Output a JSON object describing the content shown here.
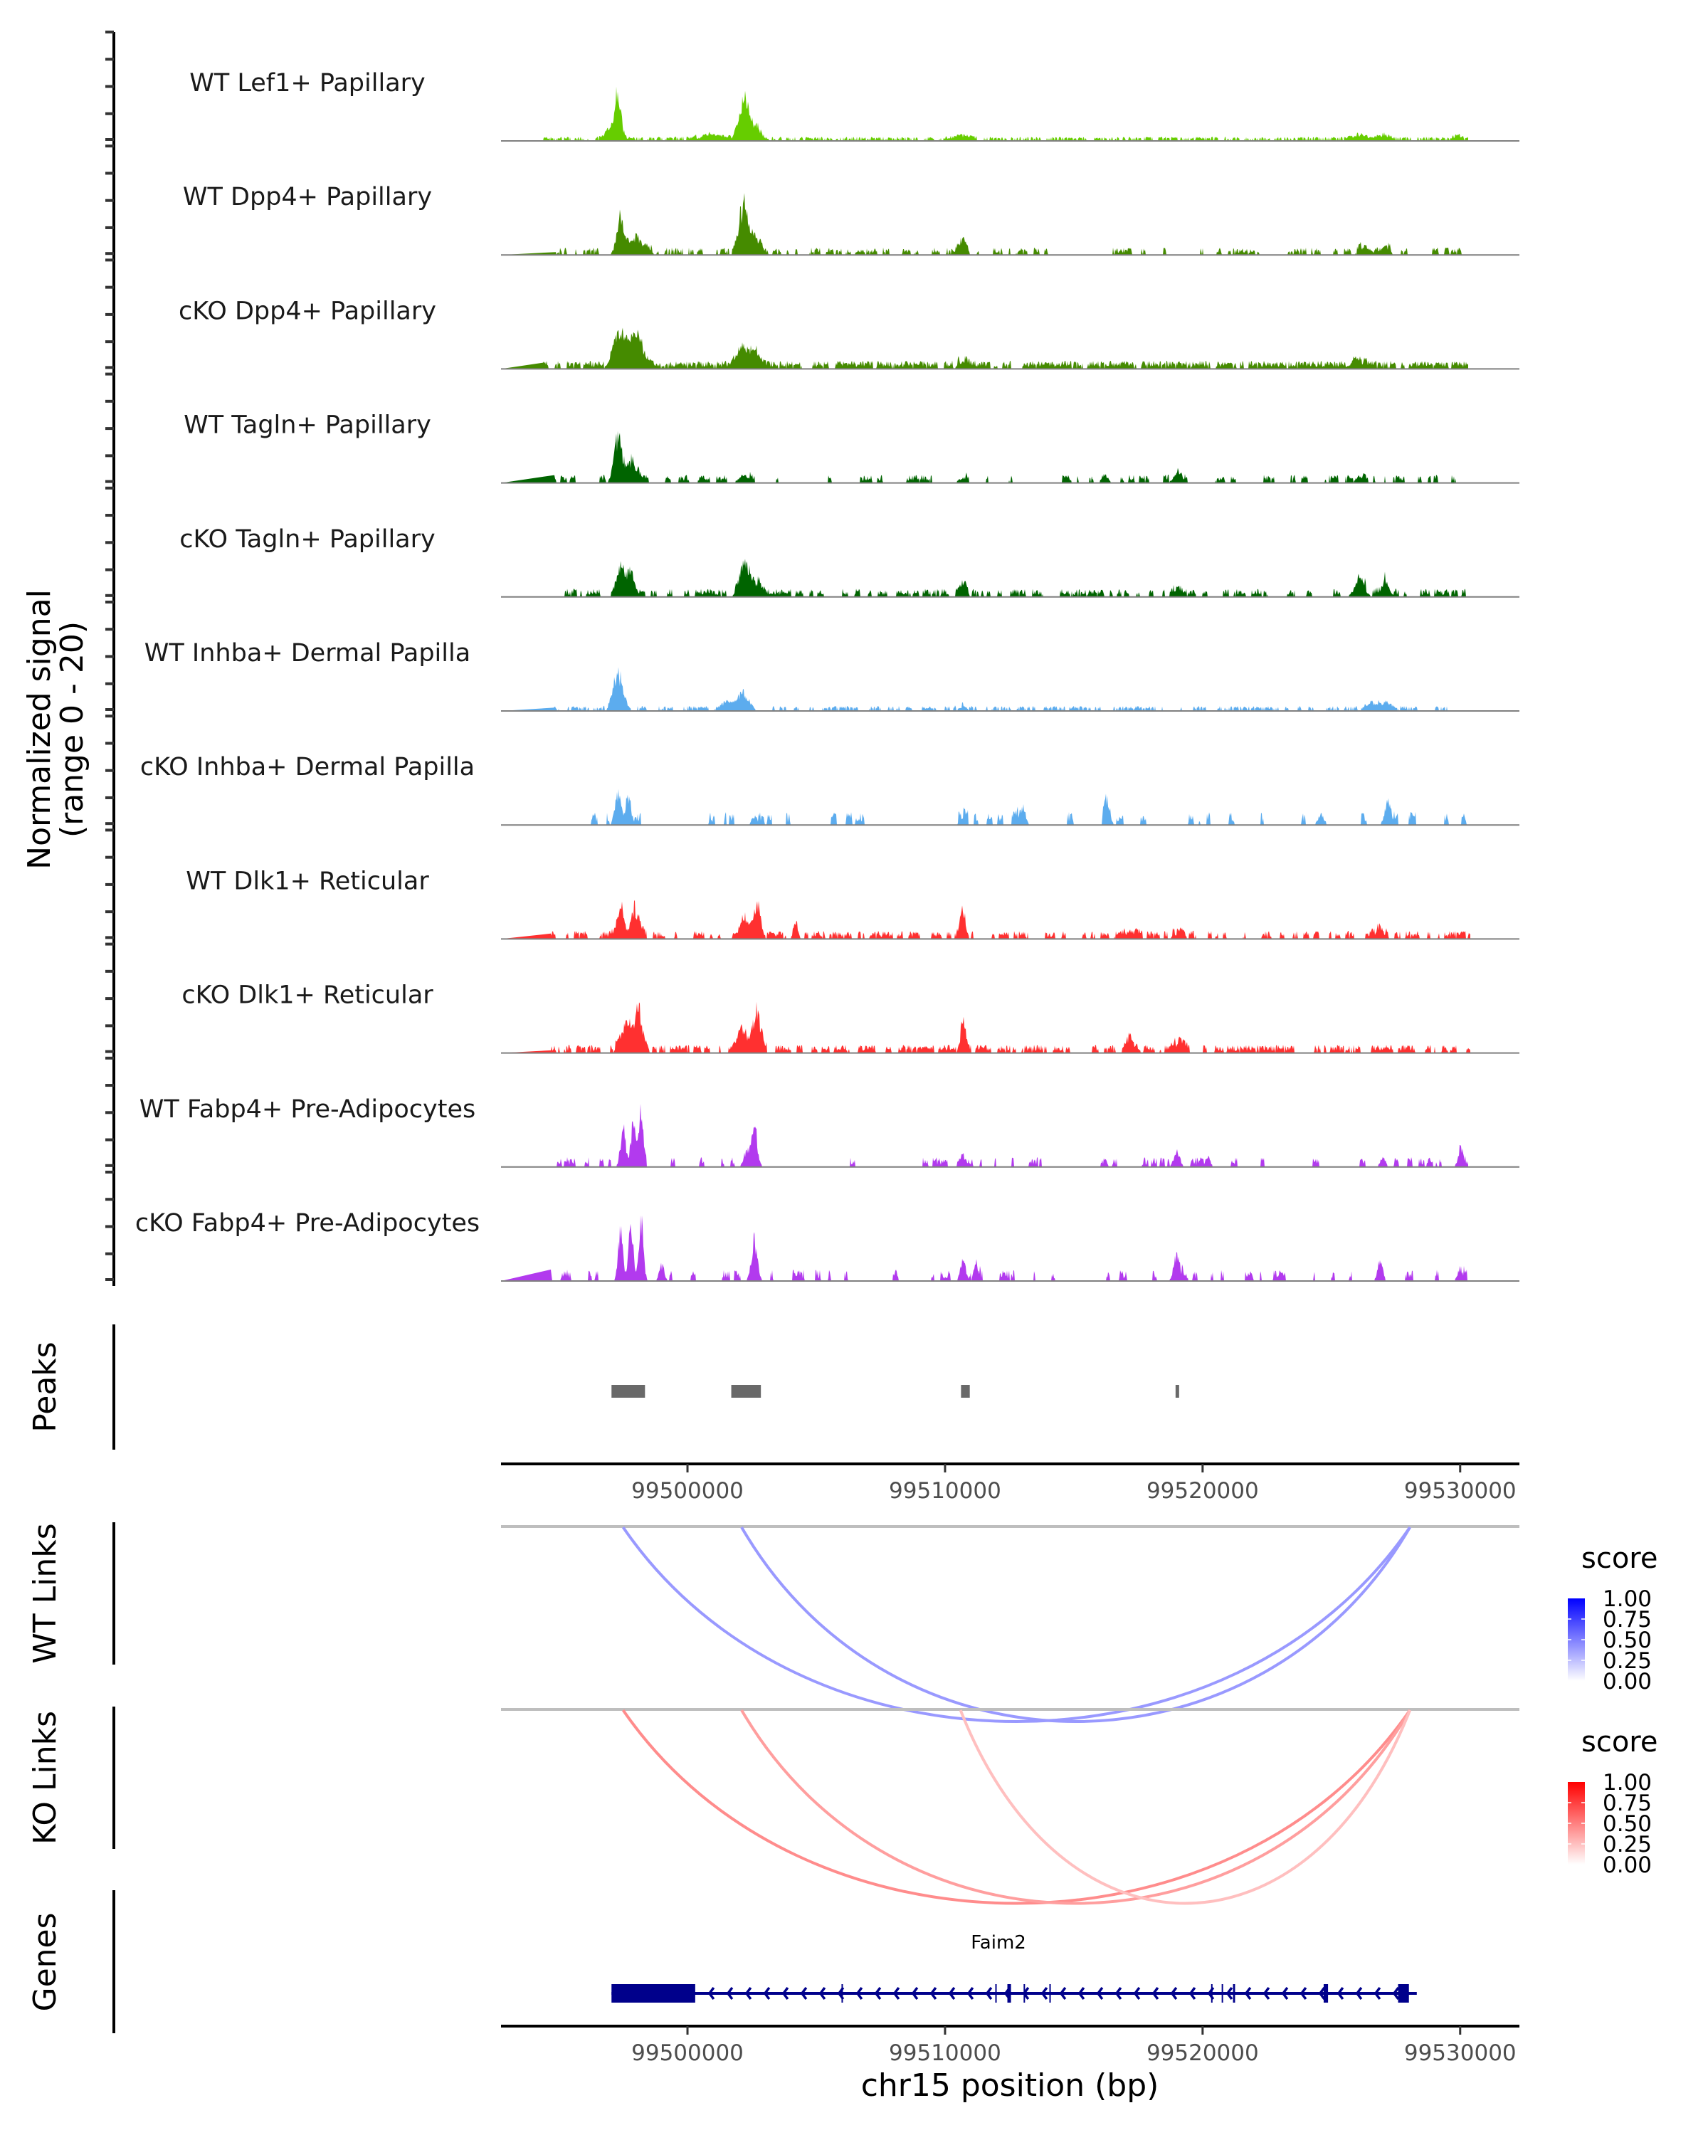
{
  "chart_data": {
    "type": "area",
    "title": "",
    "region": {
      "chrom": "chr15",
      "start": 99492760,
      "end": 99532300
    },
    "xlabel": "chr15 position (bp)",
    "x_ticks": [
      99500000,
      99510000,
      99520000,
      99530000
    ],
    "x_tick_labels": [
      "99500000",
      "99510000",
      "99520000",
      "99530000"
    ],
    "coverage": {
      "ylabel_line1": "Normalized signal",
      "ylabel_line2": "(range 0 - 20)",
      "ylim": [
        0,
        20
      ],
      "tracks": [
        {
          "name": "WT Lef1+ Papillary",
          "color": "#66CD00",
          "noise": 0.5,
          "density": 0.9,
          "seed": 11,
          "span": [
            99494400,
            99530300
          ],
          "peaks": [
            [
              99497300,
              10.0,
              120
            ],
            [
              99497000,
              2.2,
              200
            ],
            [
              99502200,
              9.0,
              200
            ],
            [
              99502700,
              2.6,
              150
            ],
            [
              99500900,
              1.0,
              500
            ],
            [
              99510700,
              0.8,
              300
            ],
            [
              99526100,
              1.0,
              250
            ],
            [
              99527000,
              0.9,
              200
            ],
            [
              99529900,
              0.9,
              150
            ]
          ]
        },
        {
          "name": "WT Dpp4+ Papillary",
          "color": "#458B00",
          "noise": 0.9,
          "density": 0.45,
          "seed": 23,
          "span": [
            99494900,
            99530200
          ],
          "peaks": [
            [
              99497400,
              7.4,
              150
            ],
            [
              99497900,
              4.2,
              200
            ],
            [
              99498400,
              2.2,
              150
            ],
            [
              99502200,
              11.5,
              180
            ],
            [
              99502700,
              3.5,
              150
            ],
            [
              99510700,
              2.7,
              150
            ],
            [
              99526300,
              2.0,
              200
            ],
            [
              99527100,
              2.0,
              150
            ]
          ]
        },
        {
          "name": "cKO Dpp4+ Papillary",
          "color": "#458B00",
          "noise": 1.0,
          "density": 0.85,
          "seed": 37,
          "span": [
            99494400,
            99530300
          ],
          "peaks": [
            [
              99497300,
              4.5,
              200
            ],
            [
              99498000,
              5.6,
              250
            ],
            [
              99497600,
              3.0,
              400
            ],
            [
              99502100,
              3.8,
              200
            ],
            [
              99502600,
              3.5,
              200
            ],
            [
              99510700,
              1.5,
              200
            ],
            [
              99526000,
              1.5,
              300
            ]
          ]
        },
        {
          "name": "WT Tagln+ Papillary",
          "color": "#006400",
          "noise": 1.0,
          "density": 0.35,
          "seed": 41,
          "span": [
            99494800,
            99530300
          ],
          "peaks": [
            [
              99497300,
              8.5,
              160
            ],
            [
              99497800,
              4.0,
              250
            ],
            [
              99502200,
              1.8,
              200
            ],
            [
              99510700,
              1.2,
              150
            ],
            [
              99516200,
              2.0,
              120
            ],
            [
              99519000,
              2.0,
              150
            ],
            [
              99526100,
              1.6,
              150
            ]
          ]
        },
        {
          "name": "cKO Tagln+ Papillary",
          "color": "#006400",
          "noise": 1.0,
          "density": 0.45,
          "seed": 53,
          "span": [
            99494800,
            99530300
          ],
          "peaks": [
            [
              99497400,
              5.5,
              150
            ],
            [
              99497800,
              6.0,
              160
            ],
            [
              99502200,
              8.3,
              180
            ],
            [
              99502700,
              3.0,
              160
            ],
            [
              99510700,
              2.1,
              150
            ],
            [
              99519000,
              1.5,
              150
            ],
            [
              99526100,
              3.5,
              200
            ],
            [
              99527100,
              3.6,
              150
            ]
          ]
        },
        {
          "name": "WT Inhba+ Dermal Papilla",
          "color": "#5CACEE",
          "noise": 0.6,
          "density": 0.55,
          "seed": 67,
          "span": [
            99494800,
            99529500
          ],
          "peaks": [
            [
              99497300,
              7.8,
              180
            ],
            [
              99502200,
              3.5,
              220
            ],
            [
              99501600,
              1.8,
              200
            ],
            [
              99510700,
              1.0,
              150
            ],
            [
              99526700,
              1.8,
              250
            ],
            [
              99527300,
              1.4,
              200
            ]
          ]
        },
        {
          "name": "cKO Inhba+ Dermal Papilla",
          "color": "#5CACEE",
          "noise": 1.6,
          "density": 0.18,
          "seed": 79,
          "span": [
            99495000,
            99530400
          ],
          "peaks": [
            [
              99497300,
              7.0,
              120
            ],
            [
              99497700,
              5.0,
              120
            ],
            [
              99502600,
              2.1,
              100
            ],
            [
              99510700,
              1.6,
              120
            ],
            [
              99513000,
              4.2,
              120
            ],
            [
              99516300,
              6.0,
              100
            ],
            [
              99524600,
              2.3,
              120
            ],
            [
              99527200,
              5.6,
              120
            ]
          ]
        },
        {
          "name": "WT Dlk1+ Reticular",
          "color": "#FF3030",
          "noise": 1.0,
          "density": 0.55,
          "seed": 83,
          "span": [
            99494700,
            99530400
          ],
          "peaks": [
            [
              99497400,
              6.3,
              150
            ],
            [
              99498000,
              6.5,
              160
            ],
            [
              99502200,
              5.0,
              180
            ],
            [
              99502700,
              6.8,
              150
            ],
            [
              99510700,
              6.8,
              100
            ],
            [
              99504200,
              2.5,
              100
            ],
            [
              99517200,
              1.8,
              200
            ],
            [
              99519100,
              1.4,
              200
            ],
            [
              99526900,
              1.8,
              200
            ]
          ]
        },
        {
          "name": "cKO Dlk1+ Reticular",
          "color": "#FF3030",
          "noise": 1.0,
          "density": 0.7,
          "seed": 97,
          "span": [
            99494700,
            99530400
          ],
          "peaks": [
            [
              99497600,
              6.3,
              200
            ],
            [
              99498100,
              9.5,
              150
            ],
            [
              99502100,
              5.6,
              150
            ],
            [
              99502700,
              9.0,
              160
            ],
            [
              99510700,
              6.1,
              110
            ],
            [
              99517200,
              2.9,
              150
            ],
            [
              99519100,
              2.4,
              200
            ]
          ]
        },
        {
          "name": "WT Fabp4+ Pre-Adipocytes",
          "color": "#B23AEE",
          "noise": 1.2,
          "density": 0.2,
          "seed": 101,
          "span": [
            99494700,
            99530300
          ],
          "peaks": [
            [
              99497500,
              9.0,
              100
            ],
            [
              99497900,
              10.0,
              100
            ],
            [
              99498200,
              10.5,
              90
            ],
            [
              99502600,
              7.5,
              120
            ],
            [
              99502300,
              3.5,
              120
            ],
            [
              99510700,
              1.5,
              100
            ],
            [
              99519000,
              3.5,
              120
            ],
            [
              99520200,
              2.2,
              100
            ],
            [
              99527000,
              2.3,
              100
            ],
            [
              99530000,
              3.2,
              100
            ]
          ]
        },
        {
          "name": "cKO Fabp4+ Pre-Adipocytes",
          "color": "#B23AEE",
          "noise": 1.4,
          "density": 0.25,
          "seed": 113,
          "span": [
            99494700,
            99530300
          ],
          "peaks": [
            [
              99497400,
              12.0,
              90
            ],
            [
              99497800,
              11.0,
              90
            ],
            [
              99498200,
              13.5,
              90
            ],
            [
              99499000,
              3.5,
              100
            ],
            [
              99502600,
              9.0,
              120
            ],
            [
              99510700,
              4.9,
              100
            ],
            [
              99511200,
              4.6,
              80
            ],
            [
              99519000,
              6.0,
              120
            ],
            [
              99526900,
              5.0,
              100
            ],
            [
              99530000,
              2.9,
              100
            ]
          ]
        }
      ]
    },
    "peaks_track": {
      "label": "Peaks",
      "color": "#696969",
      "regions": [
        [
          99497050,
          99498350
        ],
        [
          99501700,
          99502850
        ],
        [
          99510620,
          99510960
        ],
        [
          99518950,
          99519060
        ]
      ]
    },
    "links": [
      {
        "label": "WT Links",
        "legend_title": "score",
        "scale_low": "#FFFFFF",
        "scale_high": "#0000FF",
        "legend_ticks": [
          "1.00",
          "0.75",
          "0.50",
          "0.25",
          "0.00"
        ],
        "arcs": [
          {
            "start": 99497500,
            "end": 99528050,
            "score": 0.4
          },
          {
            "start": 99502100,
            "end": 99528050,
            "score": 0.4
          }
        ]
      },
      {
        "label": "KO Links",
        "legend_title": "score",
        "scale_low": "#FFFFFF",
        "scale_high": "#FF0000",
        "legend_ticks": [
          "1.00",
          "0.75",
          "0.50",
          "0.25",
          "0.00"
        ],
        "arcs": [
          {
            "start": 99497500,
            "end": 99528050,
            "score": 0.45
          },
          {
            "start": 99502100,
            "end": 99528050,
            "score": 0.38
          },
          {
            "start": 99510600,
            "end": 99528050,
            "score": 0.25
          }
        ]
      }
    ],
    "genes": {
      "label": "Genes",
      "color": "#00008B",
      "items": [
        {
          "name": "Faim2",
          "strand": "-",
          "start": 99497050,
          "end": 99528150,
          "exons": [
            [
              99497050,
              99500300
            ],
            [
              99505980,
              99506030
            ],
            [
              99511950,
              99512000
            ],
            [
              99512420,
              99512560
            ],
            [
              99513050,
              99513100
            ],
            [
              99514050,
              99514100
            ],
            [
              99520330,
              99520380
            ],
            [
              99520740,
              99520790
            ],
            [
              99521180,
              99521260
            ],
            [
              99524700,
              99524870
            ],
            [
              99527590,
              99528010
            ]
          ]
        }
      ]
    }
  }
}
